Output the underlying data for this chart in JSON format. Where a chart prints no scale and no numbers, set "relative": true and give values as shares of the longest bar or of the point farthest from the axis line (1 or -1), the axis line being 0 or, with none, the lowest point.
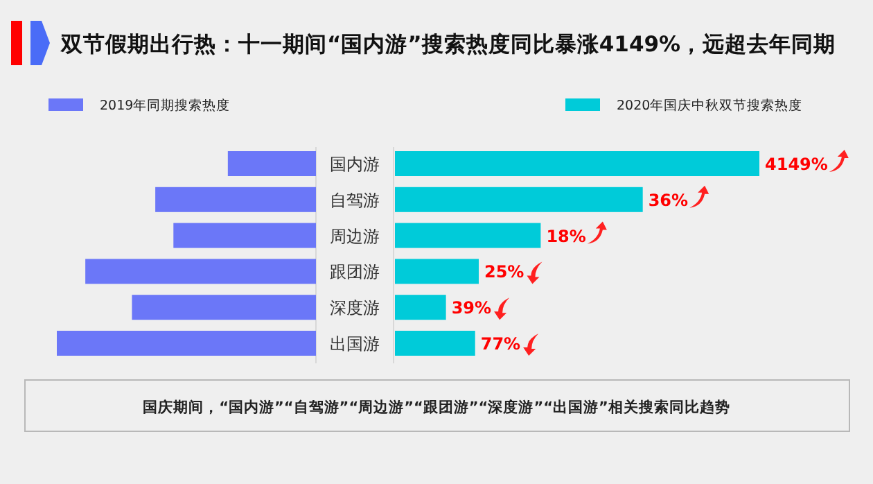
{
  "chart_data": [
    {
      "type": "bar",
      "orientation": "horizontal",
      "relative": true,
      "title": "双节假期出行热：十一期间“国内游”搜索热度同比暴涨4149%，远超去年同期",
      "categories": [
        "国内游",
        "自驾游",
        "周边游",
        "跟团游",
        "深度游",
        "出国游"
      ],
      "series": [
        {
          "name": "2019年同期搜索热度",
          "color": "#6b77f8",
          "values": [
            0.34,
            0.62,
            0.55,
            0.89,
            0.71,
            1
          ]
        }
      ],
      "legend": "top left"
    },
    {
      "type": "bar",
      "orientation": "horizontal",
      "relative": true,
      "categories": [
        null,
        null,
        null,
        null,
        null,
        null
      ],
      "series": [
        {
          "name": "2020年国庆中秋双节搜索热度",
          "color": "#00cbd9",
          "values": [
            1,
            0.68,
            0.4,
            0.23,
            0.14,
            0.22
          ]
        }
      ],
      "legend": "top right",
      "annotations": [
        "4149%",
        "36%",
        "18%",
        "25%",
        "39%",
        "77%",
        "国庆期间，“国内游”“自驾游”“周边游”“跟团游”“深度游”“出国游”相关搜索同比趋势"
      ]
    }
  ]
}
